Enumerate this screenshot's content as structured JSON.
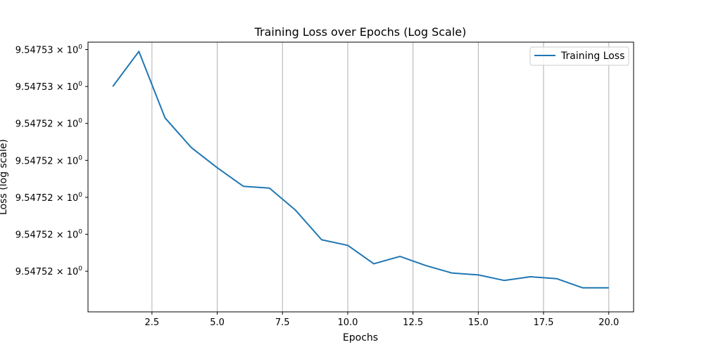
{
  "chart_data": {
    "type": "line",
    "title": "Training Loss over Epochs (Log Scale)",
    "xlabel": "Epochs",
    "ylabel": "Loss (log scale)",
    "yscale": "log",
    "grid": "x-only",
    "legend_position": "top-right",
    "colors": {
      "series": "#1f77b4",
      "grid": "#b0b0b0"
    },
    "xlim": [
      0.05,
      20.95
    ],
    "ylim": [
      9.5475168,
      9.5475314
    ],
    "x_ticks": [
      2.5,
      5.0,
      7.5,
      10.0,
      12.5,
      15.0,
      17.5,
      20.0
    ],
    "x_tick_labels": [
      "2.5",
      "5.0",
      "7.5",
      "10.0",
      "12.5",
      "15.0",
      "17.5",
      "20.0"
    ],
    "y_ticks": [
      9.547531,
      9.547529,
      9.547527,
      9.547525,
      9.547523,
      9.547521,
      9.547519
    ],
    "y_tick_labels": [
      {
        "mantissa": "9.54753",
        "base": "10",
        "exp": "0"
      },
      {
        "mantissa": "9.54753",
        "base": "10",
        "exp": "0"
      },
      {
        "mantissa": "9.54752",
        "base": "10",
        "exp": "0"
      },
      {
        "mantissa": "9.54752",
        "base": "10",
        "exp": "0"
      },
      {
        "mantissa": "9.54752",
        "base": "10",
        "exp": "0"
      },
      {
        "mantissa": "9.54752",
        "base": "10",
        "exp": "0"
      },
      {
        "mantissa": "9.54752",
        "base": "10",
        "exp": "0"
      }
    ],
    "series": [
      {
        "name": "Training Loss",
        "x": [
          1,
          2,
          3,
          4,
          5,
          6,
          7,
          8,
          9,
          10,
          11,
          12,
          13,
          14,
          15,
          16,
          17,
          18,
          19,
          20
        ],
        "values": [
          9.547529,
          9.5475309,
          9.5475273,
          9.5475257,
          9.5475246,
          9.5475236,
          9.5475235,
          9.5475223,
          9.5475207,
          9.5475204,
          9.5475194,
          9.5475198,
          9.5475193,
          9.5475189,
          9.5475188,
          9.5475185,
          9.5475187,
          9.5475186,
          9.5475181,
          9.5475181
        ]
      }
    ]
  }
}
